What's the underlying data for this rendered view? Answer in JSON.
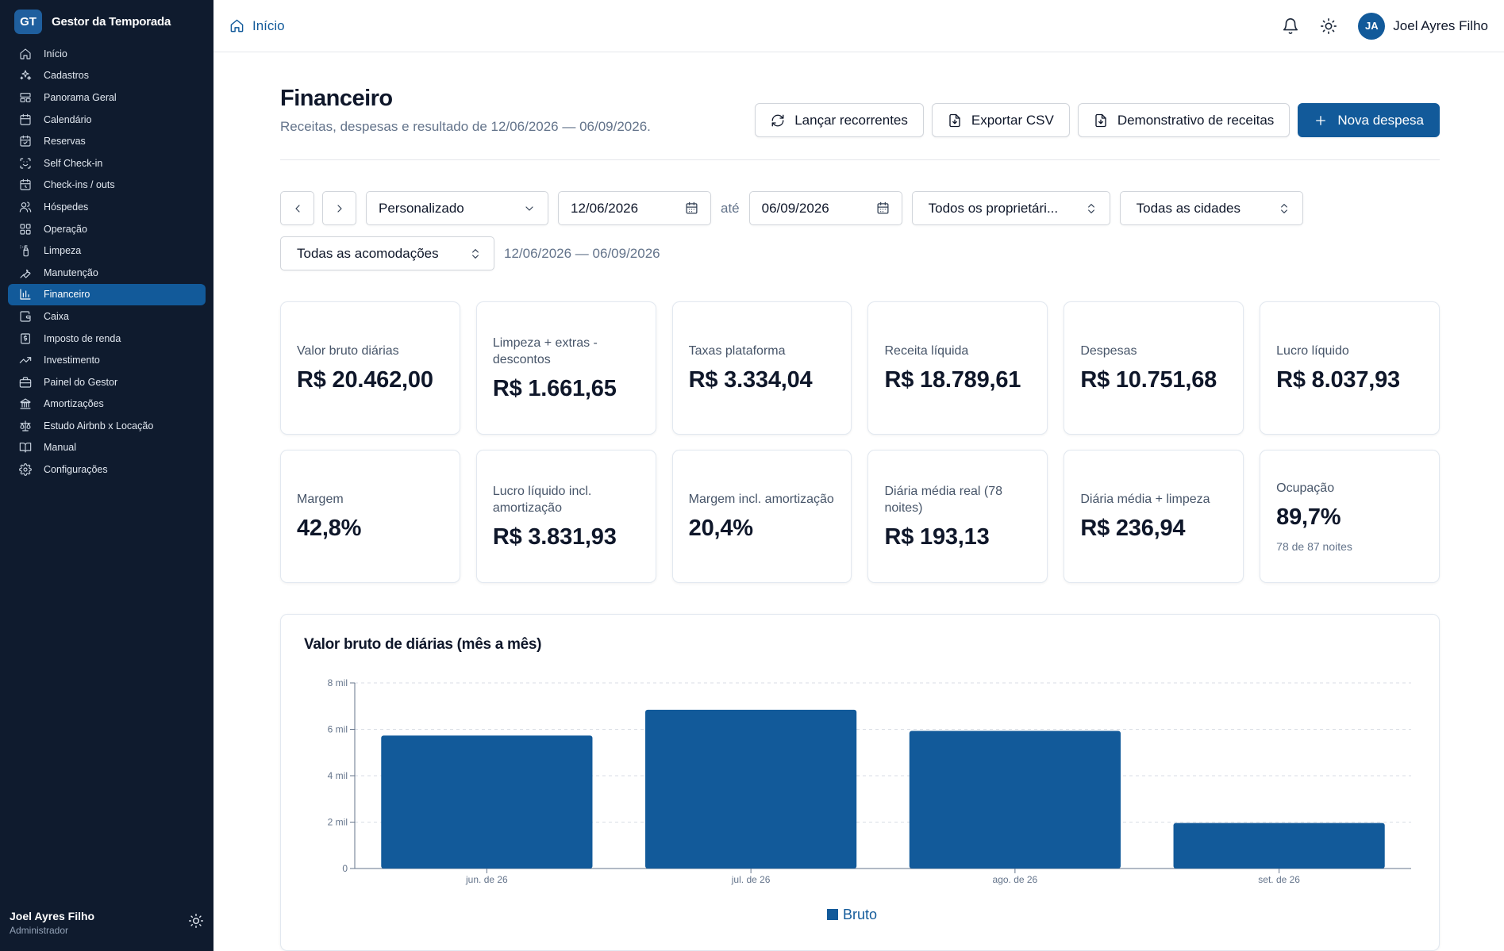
{
  "brand": {
    "initials": "GT",
    "name": "Gestor da Temporada"
  },
  "sidebar": {
    "items": [
      {
        "label": "Início",
        "icon": "home-icon"
      },
      {
        "label": "Cadastros",
        "icon": "sparkles-icon"
      },
      {
        "label": "Panorama Geral",
        "icon": "layout-icon"
      },
      {
        "label": "Calendário",
        "icon": "calendar-icon"
      },
      {
        "label": "Reservas",
        "icon": "calendar-check-icon"
      },
      {
        "label": "Self Check-in",
        "icon": "scan-icon"
      },
      {
        "label": "Check-ins / outs",
        "icon": "calendar-clock-icon"
      },
      {
        "label": "Hóspedes",
        "icon": "users-icon"
      },
      {
        "label": "Operação",
        "icon": "grid-icon"
      },
      {
        "label": "Limpeza",
        "icon": "spray-bottle-icon"
      },
      {
        "label": "Manutenção",
        "icon": "wrench-icon"
      },
      {
        "label": "Financeiro",
        "icon": "bar-chart-icon",
        "active": true
      },
      {
        "label": "Caixa",
        "icon": "wallet-icon"
      },
      {
        "label": "Imposto de renda",
        "icon": "receipt-icon"
      },
      {
        "label": "Investimento",
        "icon": "trending-up-icon"
      },
      {
        "label": "Painel do Gestor",
        "icon": "briefcase-icon"
      },
      {
        "label": "Amortizações",
        "icon": "bank-icon"
      },
      {
        "label": "Estudo Airbnb x Locação",
        "icon": "scale-icon"
      },
      {
        "label": "Manual",
        "icon": "book-icon"
      },
      {
        "label": "Configurações",
        "icon": "gear-icon"
      }
    ],
    "footer": {
      "name": "Joel Ayres Filho",
      "role": "Administrador"
    }
  },
  "topbar": {
    "breadcrumb": "Início",
    "avatar_initials": "JA",
    "user_name": "Joel Ayres Filho"
  },
  "page": {
    "title": "Financeiro",
    "subtitle": "Receitas, despesas e resultado de 12/06/2026 — 06/09/2026."
  },
  "actions": {
    "recurring": "Lançar recorrentes",
    "export": "Exportar CSV",
    "statement": "Demonstrativo de receitas",
    "new_expense": "Nova despesa"
  },
  "filters": {
    "period": "Personalizado",
    "start_date": "12/06/2026",
    "until": "até",
    "end_date": "06/09/2026",
    "owners": "Todos os proprietári...",
    "cities": "Todas as cidades",
    "properties": "Todas as acomodações",
    "range_text": "12/06/2026 — 06/09/2026"
  },
  "cards": [
    {
      "label": "Valor bruto diárias",
      "value": "R$ 20.462,00"
    },
    {
      "label": "Limpeza + extras - descontos",
      "value": "R$ 1.661,65"
    },
    {
      "label": "Taxas plataforma",
      "value": "R$ 3.334,04"
    },
    {
      "label": "Receita líquida",
      "value": "R$ 18.789,61"
    },
    {
      "label": "Despesas",
      "value": "R$ 10.751,68"
    },
    {
      "label": "Lucro líquido",
      "value": "R$ 8.037,93"
    },
    {
      "label": "Margem",
      "value": "42,8%"
    },
    {
      "label": "Lucro líquido incl. amortização",
      "value": "R$ 3.831,93"
    },
    {
      "label": "Margem incl. amortização",
      "value": "20,4%"
    },
    {
      "label": "Diária média real (78 noites)",
      "value": "R$ 193,13"
    },
    {
      "label": "Diária média + limpeza",
      "value": "R$ 236,94"
    },
    {
      "label": "Ocupação",
      "value": "89,7%",
      "note": "78 de 87 noites"
    }
  ],
  "chart_data": {
    "type": "bar",
    "title": "Valor bruto de diárias (mês a mês)",
    "categories": [
      "jun. de 26",
      "jul. de 26",
      "ago. de 26",
      "set. de 26"
    ],
    "series": [
      {
        "name": "Bruto",
        "values": [
          5730,
          6840,
          5930,
          1960
        ]
      }
    ],
    "ylim": [
      0,
      8000
    ],
    "yticks": [
      {
        "value": 0,
        "label": "0"
      },
      {
        "value": 2000,
        "label": "2 mil"
      },
      {
        "value": 4000,
        "label": "4 mil"
      },
      {
        "value": 6000,
        "label": "6 mil"
      },
      {
        "value": 8000,
        "label": "8 mil"
      }
    ],
    "grid": true,
    "legend": "bottom",
    "color": "#125a9a"
  }
}
